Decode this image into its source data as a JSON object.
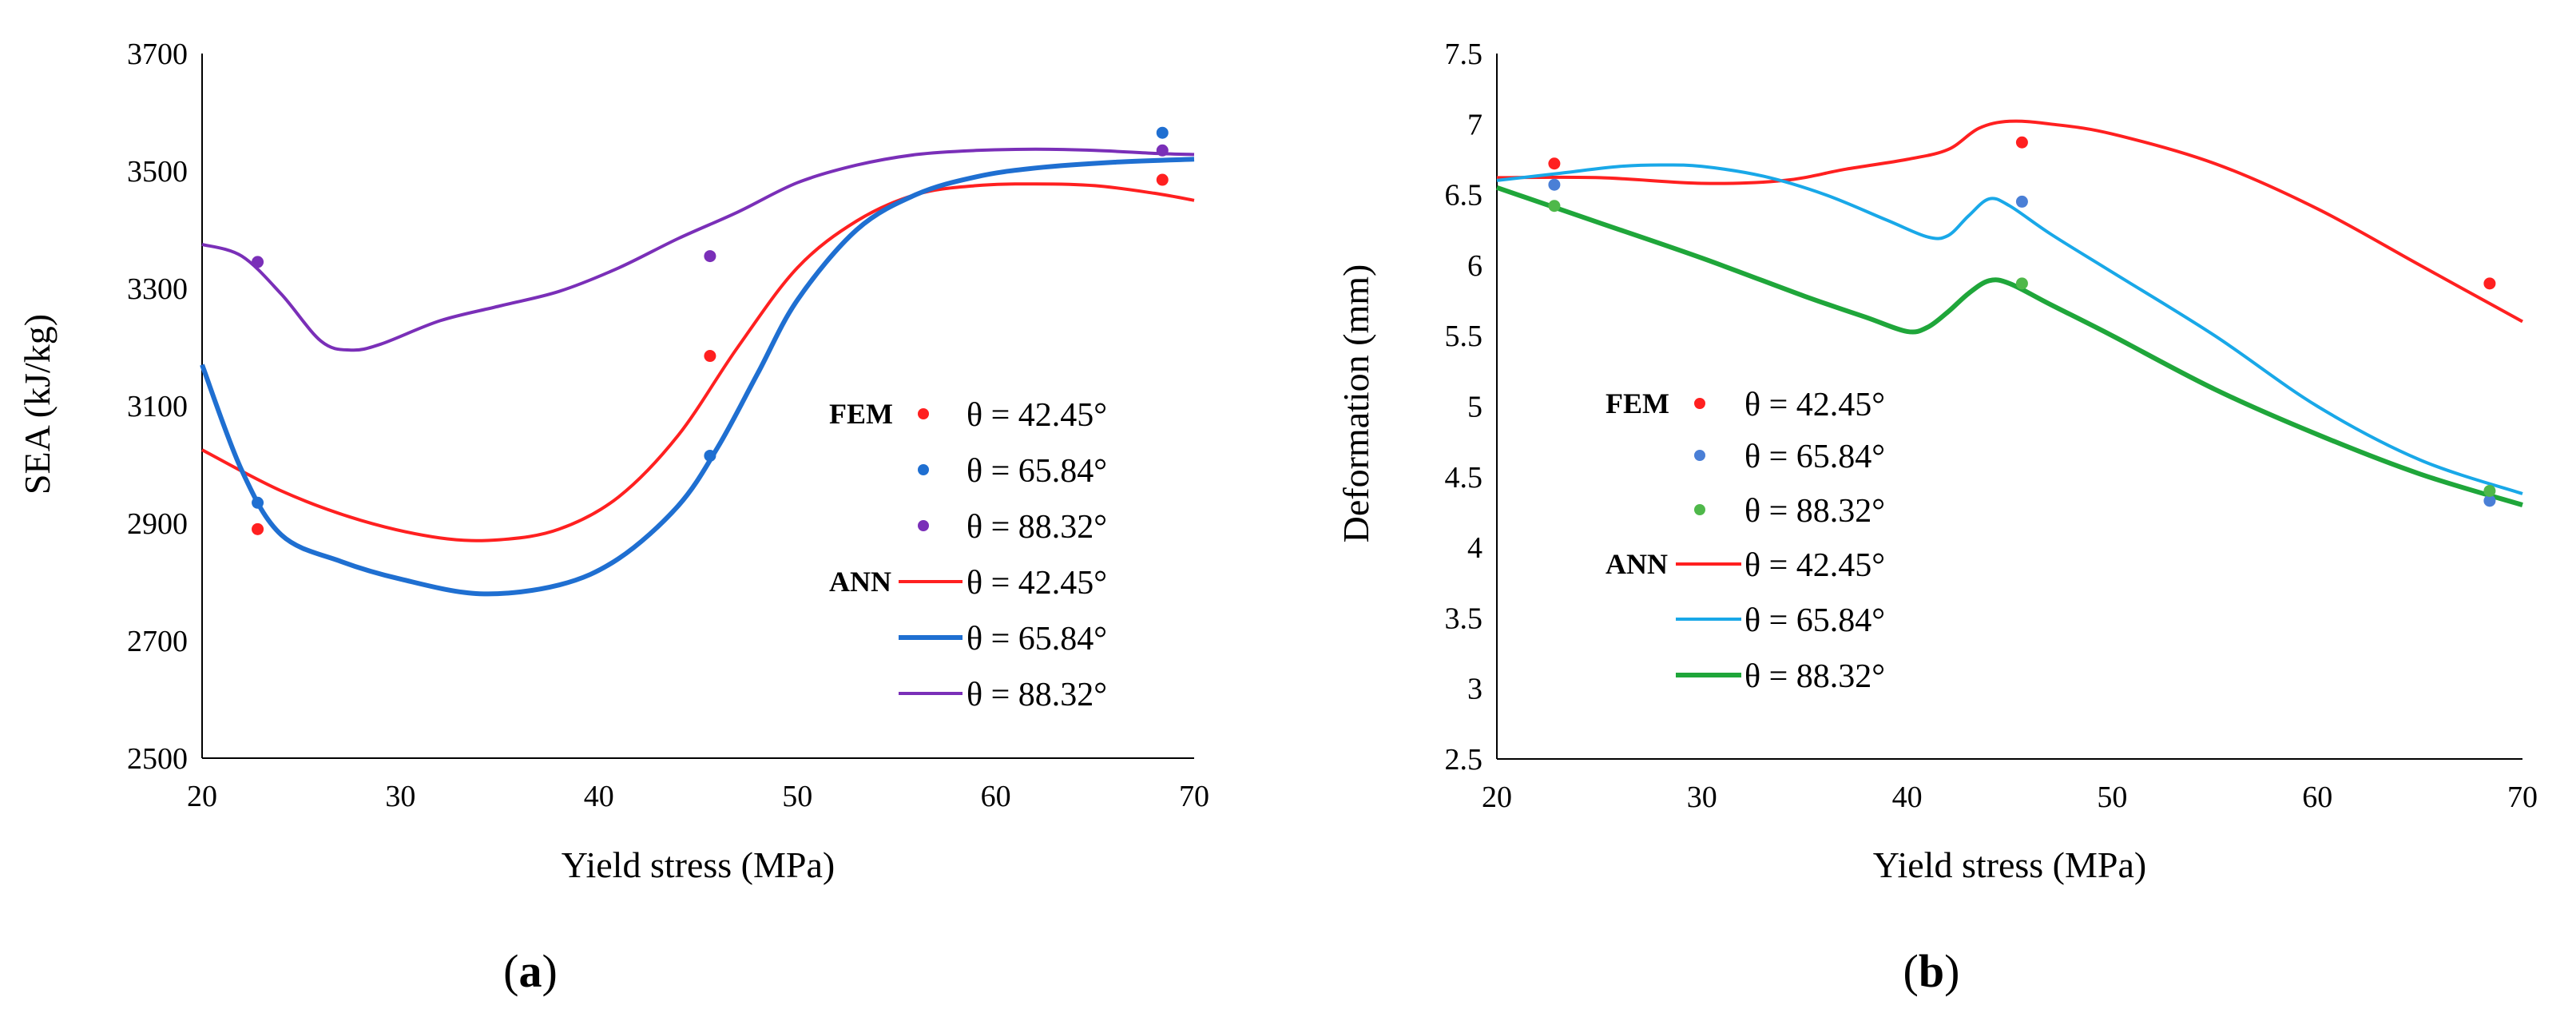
{
  "chart_data": [
    {
      "type": "line",
      "panel_label": "a",
      "title": "",
      "xlabel": "Yield stress (MPa)",
      "ylabel": "SEA (kJ/kg)",
      "xlim": [
        20,
        70
      ],
      "ylim": [
        2500,
        3700
      ],
      "xticks": [
        "20",
        "30",
        "40",
        "50",
        "60",
        "70"
      ],
      "yticks": [
        "2500",
        "2700",
        "2900",
        "3100",
        "3300",
        "3500",
        "3700"
      ],
      "legend_group_fem": "FEM",
      "legend_group_ann": "ANN",
      "fem_series": [
        {
          "name": "θ = 42.45°",
          "color": "#ff2020",
          "x": [
            22.8,
            45.6,
            68.4
          ],
          "y": [
            2890,
            3185,
            3485
          ]
        },
        {
          "name": "θ = 65.84°",
          "color": "#1f6fd1",
          "x": [
            22.8,
            45.6,
            68.4
          ],
          "y": [
            2935,
            3015,
            3565
          ]
        },
        {
          "name": "θ = 88.32°",
          "color": "#7a2fb8",
          "x": [
            22.8,
            45.6,
            68.4
          ],
          "y": [
            3345,
            3355,
            3535
          ]
        }
      ],
      "ann_series": [
        {
          "name": "θ = 42.45°",
          "color": "#ff2020",
          "x": [
            20,
            24,
            28,
            32,
            35,
            38,
            41,
            44,
            47,
            50,
            53,
            56,
            59,
            62,
            65,
            68,
            70
          ],
          "y": [
            3025,
            2955,
            2905,
            2875,
            2872,
            2890,
            2945,
            3050,
            3200,
            3335,
            3415,
            3460,
            3475,
            3478,
            3475,
            3462,
            3450
          ]
        },
        {
          "name": "θ = 65.84°",
          "color": "#1f6fd1",
          "x": [
            20,
            22,
            24,
            27,
            30,
            34,
            38,
            41,
            44,
            46,
            48,
            50,
            53,
            56,
            59,
            62,
            66,
            70
          ],
          "y": [
            3170,
            2990,
            2880,
            2835,
            2805,
            2780,
            2795,
            2840,
            2930,
            3030,
            3155,
            3280,
            3400,
            3460,
            3490,
            3505,
            3515,
            3520
          ]
        },
        {
          "name": "θ = 88.32°",
          "color": "#7a2fb8",
          "x": [
            20,
            22,
            24,
            26,
            27.5,
            29,
            32,
            35,
            38,
            41,
            44,
            47,
            50,
            53,
            56,
            59,
            62,
            65,
            68,
            70
          ],
          "y": [
            3375,
            3355,
            3290,
            3210,
            3195,
            3205,
            3245,
            3270,
            3295,
            3335,
            3385,
            3430,
            3480,
            3510,
            3528,
            3535,
            3537,
            3535,
            3530,
            3528
          ]
        }
      ]
    },
    {
      "type": "line",
      "panel_label": "b",
      "title": "",
      "xlabel": "Yield stress (MPa)",
      "ylabel": "Deformation (mm)",
      "xlim": [
        20,
        70
      ],
      "ylim": [
        2.5,
        7.5
      ],
      "xticks": [
        "20",
        "30",
        "40",
        "50",
        "60",
        "70"
      ],
      "yticks": [
        "2.5",
        "3",
        "3.5",
        "4",
        "4.5",
        "5",
        "5.5",
        "6",
        "6.5",
        "7",
        "7.5"
      ],
      "legend_group_fem": "FEM",
      "legend_group_ann": "ANN",
      "fem_series": [
        {
          "name": "θ = 42.45°",
          "color": "#ff2020",
          "x": [
            22.8,
            45.6,
            68.4
          ],
          "y": [
            6.72,
            6.87,
            5.87
          ]
        },
        {
          "name": "θ = 65.84°",
          "color": "#4a7fd6",
          "x": [
            22.8,
            45.6,
            68.4
          ],
          "y": [
            6.57,
            6.45,
            4.33
          ]
        },
        {
          "name": "θ = 88.32°",
          "color": "#4fb84a",
          "x": [
            22.8,
            45.6,
            68.4
          ],
          "y": [
            6.42,
            5.87,
            4.4
          ]
        }
      ],
      "ann_series": [
        {
          "name": "θ = 42.45°",
          "color": "#ff2020",
          "x": [
            20,
            25,
            30,
            34,
            37,
            40,
            42,
            43.5,
            45,
            47,
            50,
            55,
            60,
            65,
            70
          ],
          "y": [
            6.62,
            6.62,
            6.58,
            6.6,
            6.68,
            6.75,
            6.82,
            6.97,
            7.02,
            7.0,
            6.93,
            6.72,
            6.4,
            6.0,
            5.6
          ]
        },
        {
          "name": "θ = 65.84°",
          "color": "#19a8e8",
          "x": [
            20,
            23,
            26,
            28,
            30,
            33,
            36,
            39,
            41,
            42,
            43,
            44,
            45,
            47,
            50,
            55,
            60,
            65,
            70
          ],
          "y": [
            6.6,
            6.65,
            6.7,
            6.71,
            6.7,
            6.63,
            6.5,
            6.32,
            6.2,
            6.21,
            6.35,
            6.47,
            6.42,
            6.22,
            5.95,
            5.5,
            5.0,
            4.62,
            4.38
          ]
        },
        {
          "name": "θ = 88.32°",
          "color": "#1fa63a",
          "x": [
            20,
            25,
            30,
            35,
            38,
            40,
            41,
            42,
            43,
            44,
            45,
            47,
            50,
            55,
            60,
            65,
            70
          ],
          "y": [
            6.55,
            6.3,
            6.05,
            5.78,
            5.63,
            5.53,
            5.56,
            5.67,
            5.8,
            5.89,
            5.87,
            5.72,
            5.5,
            5.12,
            4.8,
            4.52,
            4.3
          ]
        }
      ]
    }
  ]
}
